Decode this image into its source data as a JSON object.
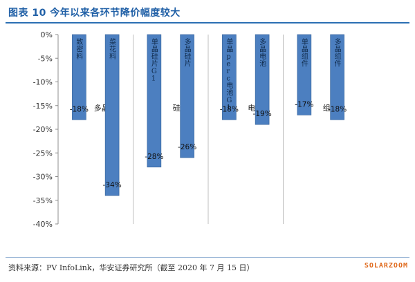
{
  "header": {
    "title": "图表 10  今年以来各环节降价幅度较大"
  },
  "footer": {
    "source": "资料来源：PV InfoLink，华安证券研究所（截至 2020 年 7 月 15 日）",
    "brand": "SOLARZOOM"
  },
  "colors": {
    "bar": "#4c7fc0",
    "bar_edge": "#2f5d95",
    "grid": "#d9d9d9",
    "divider": "#bfbfbf"
  },
  "chart_data": {
    "type": "bar",
    "title": "",
    "xlabel": "",
    "ylabel": "",
    "ylim": [
      -40,
      0
    ],
    "yticks": [
      "0%",
      "-5%",
      "-10%",
      "-15%",
      "-20%",
      "-25%",
      "-30%",
      "-35%",
      "-40%"
    ],
    "grid": false,
    "groups": [
      {
        "name": "多晶硅",
        "categories": [
          "致密料",
          "菜花料"
        ]
      },
      {
        "name": "硅片",
        "categories": [
          "单晶硅片G1",
          "多晶硅片"
        ]
      },
      {
        "name": "电池",
        "categories": [
          "单晶perc电池G1",
          "多晶电池"
        ]
      },
      {
        "name": "组件",
        "categories": [
          "单晶组件",
          "多晶组件"
        ]
      }
    ],
    "categories": [
      "致密料",
      "菜花料",
      "单晶硅片G1",
      "多晶硅片",
      "单晶perc电池G1",
      "多晶电池",
      "单晶组件",
      "多晶组件"
    ],
    "values": [
      -18,
      -34,
      -28,
      -26,
      -18,
      -19,
      -17,
      -18
    ],
    "data_labels": [
      "-18%",
      "-34%",
      "-28%",
      "-26%",
      "-18%",
      "-19%",
      "-17%",
      "-18%"
    ]
  }
}
